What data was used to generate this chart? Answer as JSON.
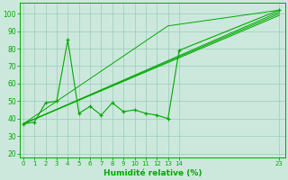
{
  "xlabel": "Humidité relative (%)",
  "bg_color": "#cce8dc",
  "grid_color": "#99ccbb",
  "line_color": "#00aa00",
  "xlim": [
    -0.3,
    23.5
  ],
  "ylim": [
    18,
    106
  ],
  "xticks": [
    0,
    1,
    2,
    3,
    4,
    5,
    6,
    7,
    8,
    9,
    10,
    11,
    12,
    13,
    14,
    23
  ],
  "yticks": [
    20,
    30,
    40,
    50,
    60,
    70,
    80,
    90,
    100
  ],
  "series_main_x": [
    0,
    1,
    2,
    3,
    4,
    5,
    6,
    7,
    8,
    9,
    10,
    11,
    12,
    13,
    14,
    23
  ],
  "series_main_y": [
    37,
    38,
    49,
    50,
    85,
    43,
    47,
    42,
    49,
    44,
    45,
    43,
    42,
    40,
    79,
    102
  ],
  "line1_x": [
    0,
    23
  ],
  "line1_y": [
    37,
    101
  ],
  "line2_x": [
    0,
    23
  ],
  "line2_y": [
    37,
    100
  ],
  "line3_x": [
    0,
    23
  ],
  "line3_y": [
    37,
    99
  ],
  "line4_x": [
    0,
    13,
    23
  ],
  "line4_y": [
    37,
    93,
    102
  ]
}
